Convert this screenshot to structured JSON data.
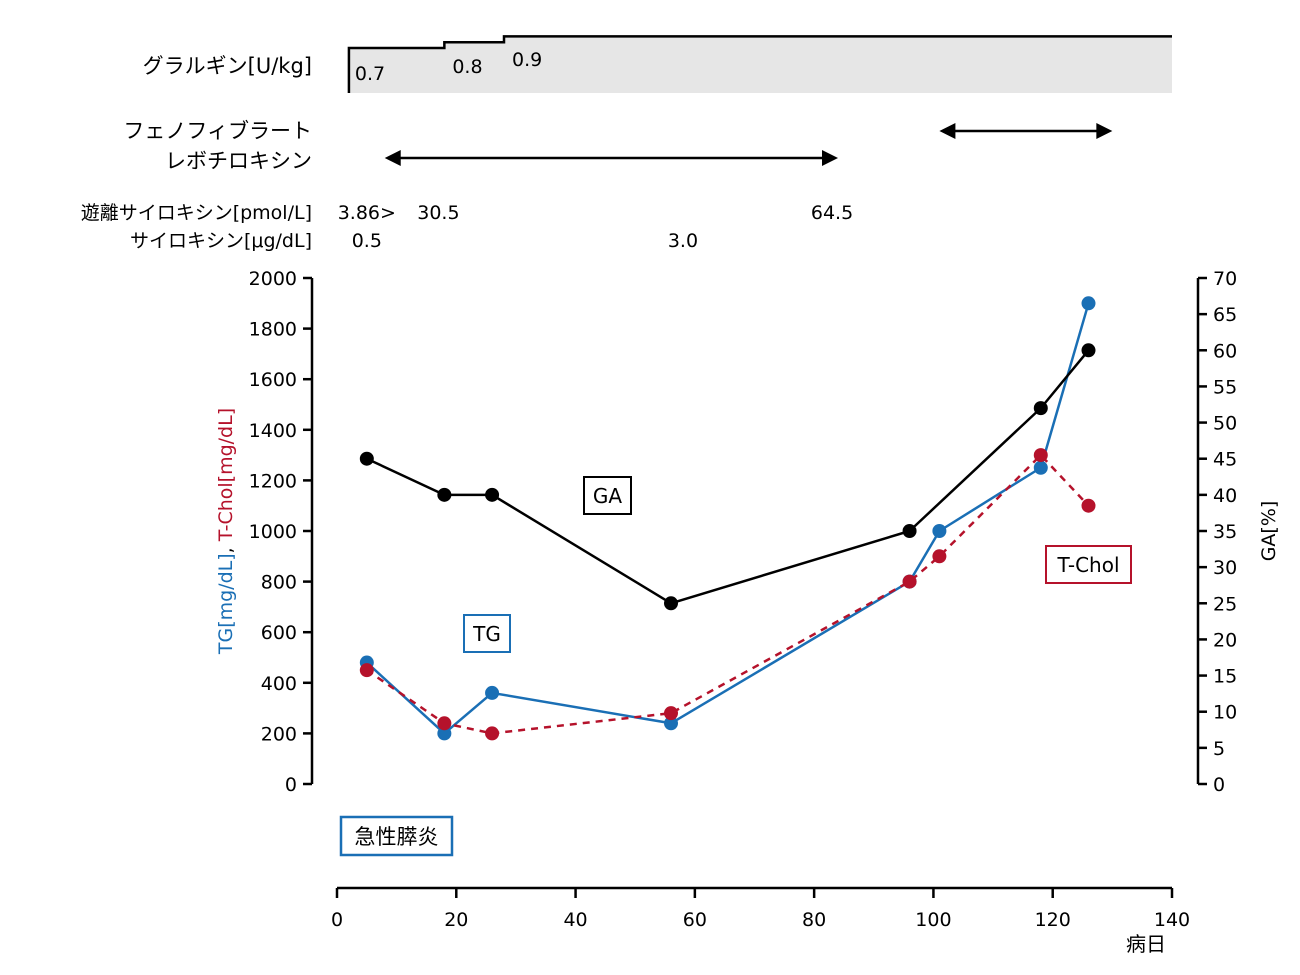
{
  "header": {
    "glargine_label": "グラルギン[U/kg]",
    "glargine_steps": [
      {
        "start_day": 2,
        "value": 0.7,
        "label": "0.7"
      },
      {
        "start_day": 18,
        "value": 0.8,
        "label": "0.8"
      },
      {
        "start_day": 28,
        "value": 0.9,
        "label": "0.9"
      }
    ],
    "glargine_end_day": 140,
    "fenofibrate_label": "フェノフィブラート",
    "fenofibrate_period": [
      101,
      130
    ],
    "levothyroxine_label": "レボチロキシン",
    "levothyroxine_period": [
      8,
      84
    ],
    "ft4_label": "遊離サイロキシン[pmol/L]",
    "ft4_values": [
      {
        "day": 5,
        "label": "3.86>"
      },
      {
        "day": 17,
        "label": "30.5"
      },
      {
        "day": 83,
        "label": "64.5"
      }
    ],
    "t4_label": "サイロキシン[μg/dL]",
    "t4_values": [
      {
        "day": 5,
        "label": "0.5"
      },
      {
        "day": 58,
        "label": "3.0"
      }
    ]
  },
  "chart_data": {
    "type": "line",
    "x_axis": {
      "label": "病日",
      "min": 0,
      "max": 140,
      "ticks": [
        0,
        20,
        40,
        60,
        80,
        100,
        120,
        140
      ]
    },
    "y_left": {
      "label_parts": [
        {
          "text": "TG[mg/dL]",
          "color": "#1a6fb5"
        },
        {
          "text": ", ",
          "color": "#000000"
        },
        {
          "text": "T-Chol[mg/dL]",
          "color": "#b5122b"
        }
      ],
      "min": 0,
      "max": 2000,
      "ticks": [
        0,
        200,
        400,
        600,
        800,
        1000,
        1200,
        1400,
        1600,
        1800,
        2000
      ]
    },
    "y_right": {
      "label": "GA[%]",
      "min": 0,
      "max": 70,
      "ticks": [
        0,
        5,
        10,
        15,
        20,
        25,
        30,
        35,
        40,
        45,
        50,
        55,
        60,
        65,
        70
      ]
    },
    "series": [
      {
        "name": "TG",
        "axis": "left",
        "color": "#1a6fb5",
        "dash": false,
        "x": [
          5,
          18,
          26,
          56,
          96,
          101,
          118,
          126
        ],
        "y": [
          480,
          200,
          360,
          240,
          800,
          1000,
          1250,
          1900
        ]
      },
      {
        "name": "T-Chol",
        "axis": "left",
        "color": "#b5122b",
        "dash": true,
        "x": [
          5,
          18,
          26,
          56,
          96,
          101,
          118,
          126
        ],
        "y": [
          450,
          240,
          200,
          280,
          800,
          900,
          1300,
          1100
        ]
      },
      {
        "name": "GA",
        "axis": "right",
        "color": "#000000",
        "dash": false,
        "x": [
          5,
          18,
          26,
          56,
          96,
          118,
          126
        ],
        "y": [
          45,
          40,
          40,
          25,
          35,
          52,
          60
        ]
      }
    ],
    "annotations": [
      {
        "text": "GA",
        "color": "#000000"
      },
      {
        "text": "TG",
        "color": "#1a6fb5"
      },
      {
        "text": "T-Chol",
        "color": "#b5122b"
      },
      {
        "text": "急性膵炎",
        "color": "#1a6fb5"
      }
    ]
  }
}
